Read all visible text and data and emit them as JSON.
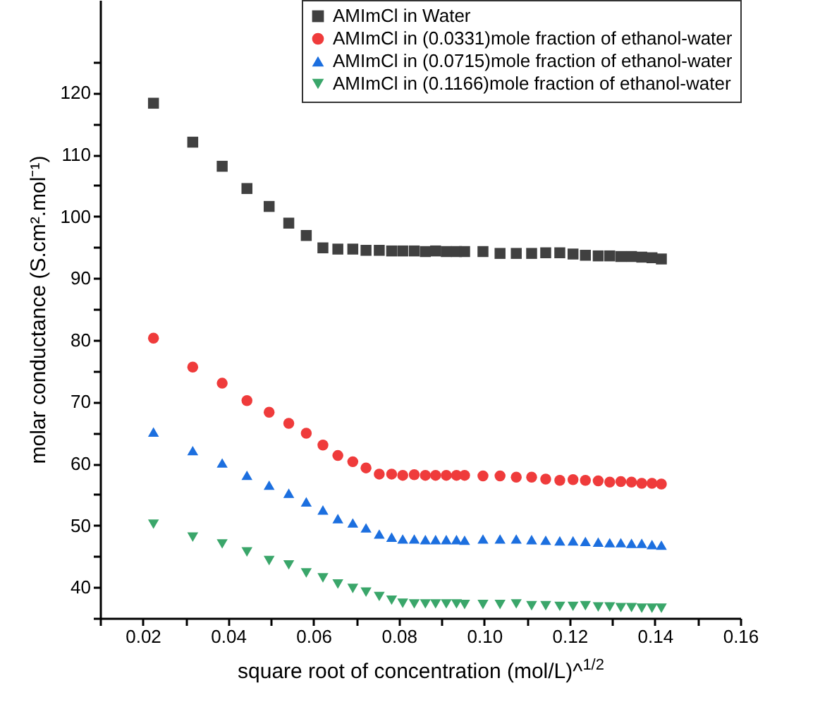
{
  "chart_data": {
    "type": "scatter",
    "xlabel": "square root of concentration (mol/L)^$^{1/2}$",
    "ylabel": "molar conductance (S.cm².mol⁻¹)",
    "x": [
      0.0225,
      0.0317,
      0.0386,
      0.0444,
      0.0496,
      0.0542,
      0.0583,
      0.0622,
      0.0657,
      0.0692,
      0.0723,
      0.0754,
      0.0783,
      0.0809,
      0.0836,
      0.0862,
      0.0886,
      0.0911,
      0.0935,
      0.0954,
      0.0997,
      0.1037,
      0.1075,
      0.1111,
      0.1144,
      0.1177,
      0.1208,
      0.1237,
      0.1267,
      0.1294,
      0.132,
      0.1345,
      0.1369,
      0.1393,
      0.1415
    ],
    "series": [
      {
        "name": "AMImCl in Water",
        "color": "#404040",
        "marker": "square",
        "values": [
          118.3,
          112.0,
          108.1,
          104.5,
          101.6,
          98.9,
          96.9,
          94.9,
          94.7,
          94.7,
          94.5,
          94.5,
          94.4,
          94.4,
          94.4,
          94.3,
          94.4,
          94.3,
          94.3,
          94.3,
          94.3,
          94.0,
          94.0,
          94.0,
          94.1,
          94.1,
          93.9,
          93.7,
          93.6,
          93.6,
          93.5,
          93.5,
          93.4,
          93.3,
          93.1
        ]
      },
      {
        "name": "AMImCl in (0.0331)mole fraction of ethanol-water",
        "color": "#ef3b3b",
        "marker": "circle",
        "values": [
          80.3,
          75.6,
          73.0,
          70.2,
          68.3,
          66.5,
          64.9,
          63.0,
          61.3,
          60.3,
          59.3,
          58.3,
          58.3,
          58.1,
          58.2,
          58.1,
          58.1,
          58.1,
          58.1,
          58.1,
          58.0,
          58.0,
          57.8,
          57.8,
          57.5,
          57.3,
          57.4,
          57.3,
          57.2,
          57.0,
          57.1,
          57.0,
          56.8,
          56.8,
          56.7
        ]
      },
      {
        "name": "AMImCl in (0.0715)mole fraction of ethanol-water",
        "color": "#1c6fdf",
        "marker": "triangle",
        "values": [
          65.1,
          62.1,
          60.1,
          58.1,
          56.5,
          55.2,
          53.8,
          52.5,
          51.1,
          50.4,
          49.6,
          48.6,
          48.1,
          47.8,
          47.8,
          47.7,
          47.7,
          47.7,
          47.7,
          47.6,
          47.8,
          47.8,
          47.8,
          47.7,
          47.6,
          47.5,
          47.5,
          47.4,
          47.3,
          47.2,
          47.2,
          47.1,
          47.1,
          46.9,
          46.8
        ]
      },
      {
        "name": "AMImCl in (0.1166)mole fraction of ethanol-water",
        "color": "#3aa66a",
        "marker": "triangle-down",
        "values": [
          50.2,
          48.1,
          47.0,
          45.7,
          44.3,
          43.6,
          42.3,
          41.5,
          40.5,
          39.8,
          39.2,
          38.5,
          37.9,
          37.4,
          37.3,
          37.3,
          37.3,
          37.3,
          37.3,
          37.2,
          37.2,
          37.2,
          37.3,
          37.0,
          37.0,
          36.9,
          36.9,
          37.0,
          36.8,
          36.8,
          36.7,
          36.7,
          36.6,
          36.6,
          36.6
        ]
      }
    ],
    "xlim": [
      0.01,
      0.16
    ],
    "xticks": [
      {
        "value": 0.01,
        "label": null
      },
      {
        "value": 0.02,
        "label": "0.02"
      },
      {
        "value": 0.03,
        "label": null
      },
      {
        "value": 0.04,
        "label": "0.04"
      },
      {
        "value": 0.05,
        "label": null
      },
      {
        "value": 0.06,
        "label": "0.06"
      },
      {
        "value": 0.07,
        "label": null
      },
      {
        "value": 0.08,
        "label": "0.08"
      },
      {
        "value": 0.09,
        "label": null
      },
      {
        "value": 0.1,
        "label": "0.10"
      },
      {
        "value": 0.11,
        "label": null
      },
      {
        "value": 0.12,
        "label": "0.12"
      },
      {
        "value": 0.13,
        "label": null
      },
      {
        "value": 0.14,
        "label": "0.14"
      },
      {
        "value": 0.15,
        "label": null
      },
      {
        "value": 0.16,
        "label": "0.16"
      }
    ],
    "ylim": [
      35,
      135
    ],
    "yticks": [
      {
        "value": 35,
        "label": null
      },
      40,
      {
        "value": 45,
        "label": null
      },
      50,
      {
        "value": 55,
        "label": null
      },
      60,
      {
        "value": 65,
        "label": null
      },
      70,
      {
        "value": 75,
        "label": null
      },
      80,
      {
        "value": 85,
        "label": null
      },
      90,
      {
        "value": 95,
        "label": null
      },
      100,
      {
        "value": 105,
        "label": null
      },
      110,
      {
        "value": 115,
        "label": null
      },
      120,
      {
        "value": 125,
        "label": null
      }
    ],
    "grid": false,
    "legend": "top right"
  }
}
